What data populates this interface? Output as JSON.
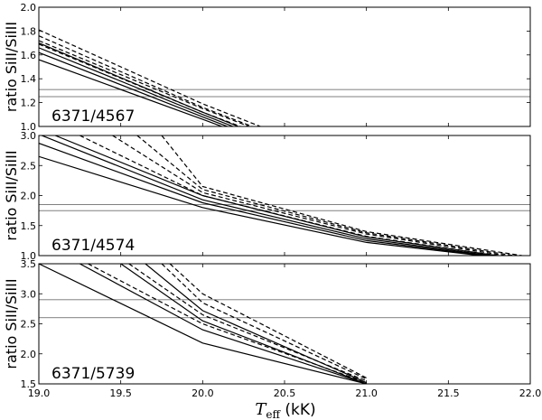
{
  "chart_data": {
    "type": "line",
    "xlabel_main": "T",
    "xlabel_sub": "eff",
    "xlabel_unit": " (kK)",
    "xlim": [
      19.0,
      22.0
    ],
    "xticks": [
      "19.0",
      "19.5",
      "20.0",
      "20.5",
      "21.0",
      "21.5",
      "22.0"
    ],
    "panels": [
      {
        "label": "6371/4567",
        "ylabel": "ratio SiII/SiIII",
        "ylim": [
          1.0,
          2.0
        ],
        "yticks": [
          "1.0",
          "1.2",
          "1.4",
          "1.6",
          "1.8",
          "2.0"
        ],
        "hlines": [
          1.25,
          1.31
        ],
        "series": [
          {
            "style": "solid",
            "x": [
              19.0,
              20.0,
              21.0
            ],
            "y": [
              1.56,
              1.06,
              0.55
            ]
          },
          {
            "style": "solid",
            "x": [
              19.0,
              20.0,
              21.0
            ],
            "y": [
              1.62,
              1.08,
              0.55
            ]
          },
          {
            "style": "solid",
            "x": [
              19.0,
              20.0,
              21.0
            ],
            "y": [
              1.66,
              1.1,
              0.56
            ]
          },
          {
            "style": "solid",
            "x": [
              19.0,
              20.0,
              21.0
            ],
            "y": [
              1.7,
              1.12,
              0.57
            ]
          },
          {
            "style": "dashed",
            "x": [
              19.0,
              20.0,
              21.0
            ],
            "y": [
              1.69,
              1.12,
              0.6
            ]
          },
          {
            "style": "dashed",
            "x": [
              19.0,
              20.0,
              21.0
            ],
            "y": [
              1.72,
              1.15,
              0.62
            ]
          },
          {
            "style": "dashed",
            "x": [
              19.0,
              20.0,
              21.0
            ],
            "y": [
              1.76,
              1.16,
              0.63
            ]
          },
          {
            "style": "dashed",
            "x": [
              19.0,
              20.0,
              21.0
            ],
            "y": [
              1.81,
              1.19,
              0.65
            ]
          }
        ]
      },
      {
        "label": "6371/4574",
        "ylabel": "ratio SiII/SiIII",
        "ylim": [
          1.0,
          3.0
        ],
        "yticks": [
          "1.0",
          "1.5",
          "2.0",
          "2.5",
          "3.0"
        ],
        "hlines": [
          1.75,
          1.85
        ],
        "series": [
          {
            "style": "solid",
            "x": [
              19.0,
              20.0,
              21.0,
              21.7
            ],
            "y": [
              2.65,
              1.8,
              1.22,
              1.0
            ]
          },
          {
            "style": "solid",
            "x": [
              19.0,
              20.0,
              21.0,
              21.73
            ],
            "y": [
              2.87,
              1.88,
              1.25,
              1.0
            ]
          },
          {
            "style": "solid",
            "x": [
              19.0,
              20.0,
              21.0,
              21.76
            ],
            "y": [
              3.02,
              1.93,
              1.28,
              1.0
            ]
          },
          {
            "style": "solid",
            "x": [
              19.1,
              20.0,
              21.0,
              21.8
            ],
            "y": [
              3.0,
              2.0,
              1.31,
              1.0
            ]
          },
          {
            "style": "dashed",
            "x": [
              19.25,
              20.0,
              21.0,
              21.8
            ],
            "y": [
              3.0,
              2.0,
              1.32,
              1.0
            ]
          },
          {
            "style": "dashed",
            "x": [
              19.45,
              20.0,
              21.0,
              21.85
            ],
            "y": [
              3.0,
              2.05,
              1.36,
              1.0
            ]
          },
          {
            "style": "dashed",
            "x": [
              19.6,
              20.0,
              21.0,
              21.9
            ],
            "y": [
              3.0,
              2.1,
              1.38,
              1.0
            ]
          },
          {
            "style": "dashed",
            "x": [
              19.75,
              20.0,
              21.0,
              21.95
            ],
            "y": [
              3.0,
              2.15,
              1.4,
              1.0
            ]
          }
        ]
      },
      {
        "label": "6371/5739",
        "ylabel": "ratio SiII/SiIII",
        "ylim": [
          1.5,
          3.5
        ],
        "yticks": [
          "1.5",
          "2.0",
          "2.5",
          "3.0",
          "3.5"
        ],
        "hlines": [
          2.6,
          2.9
        ],
        "series": [
          {
            "style": "solid",
            "x": [
              19.0,
              20.0,
              21.0
            ],
            "y": [
              3.5,
              2.18,
              1.5
            ]
          },
          {
            "style": "solid",
            "x": [
              19.25,
              20.0,
              21.0
            ],
            "y": [
              3.5,
              2.4,
              1.5
            ]
          },
          {
            "style": "solid",
            "x": [
              19.5,
              20.0,
              21.0
            ],
            "y": [
              3.5,
              2.55,
              1.5
            ]
          },
          {
            "style": "solid",
            "x": [
              19.65,
              20.0,
              21.0
            ],
            "y": [
              3.5,
              2.72,
              1.52
            ]
          },
          {
            "style": "dashed",
            "x": [
              19.3,
              20.0,
              21.0
            ],
            "y": [
              3.5,
              2.5,
              1.52
            ]
          },
          {
            "style": "dashed",
            "x": [
              19.55,
              20.0,
              21.0
            ],
            "y": [
              3.5,
              2.65,
              1.55
            ]
          },
          {
            "style": "dashed",
            "x": [
              19.75,
              20.0,
              21.0
            ],
            "y": [
              3.5,
              2.85,
              1.58
            ]
          },
          {
            "style": "dashed",
            "x": [
              19.8,
              20.0,
              21.0
            ],
            "y": [
              3.5,
              3.0,
              1.6
            ]
          }
        ]
      }
    ]
  }
}
